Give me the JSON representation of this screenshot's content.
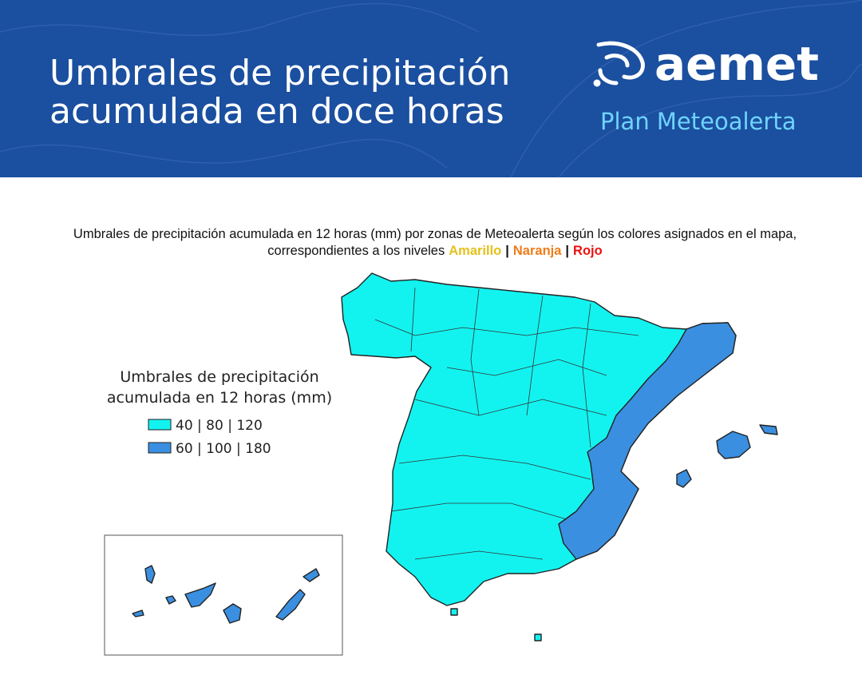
{
  "header": {
    "title_lines": [
      "Umbrales de precipitación",
      "acumulada en doce horas"
    ],
    "logo": "aemet",
    "subtitle": "Plan Meteoalerta"
  },
  "map": {
    "caption_line1": "Umbrales de precipitación acumulada en 12 horas (mm) por zonas de Meteoalerta según los colores asignados en el mapa,",
    "caption_line2": "correspondientes a los niveles",
    "levels": [
      {
        "label": "Amarillo",
        "color": "#e3c11c"
      },
      {
        "label": "Naranja",
        "color": "#ef7b18"
      },
      {
        "label": "Rojo",
        "color": "#ee1111"
      }
    ],
    "separator": "|",
    "legend": {
      "title_lines": [
        "Umbrales de precipitación",
        "acumulada en 12 horas (mm)"
      ],
      "items": [
        {
          "label": "40 | 80 | 120",
          "color": "#12f3f0"
        },
        {
          "label": "60 | 100 | 180",
          "color": "#3b8fe0"
        }
      ]
    }
  }
}
